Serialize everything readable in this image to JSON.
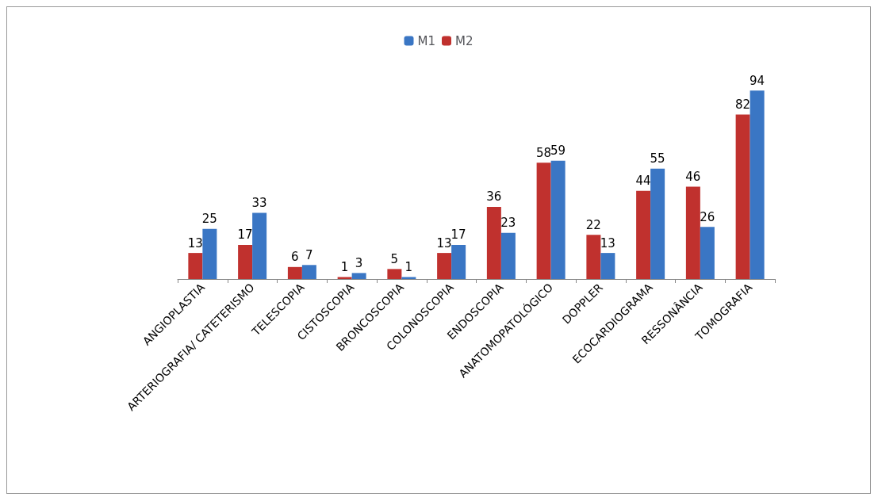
{
  "chart_data": {
    "type": "bar",
    "categories": [
      "ANGIOPLASTIA",
      "ARTERIOGRAFIA/ CATETERISMO",
      "TELESCOPIA",
      "CISTOSCOPIA",
      "BRONCOSCOPIA",
      "COLONOSCOPIA",
      "ENDOSCOPIA",
      "ANATOMOPATOLÓGICO",
      "DOPPLER",
      "ECOCARDIOGRAMA",
      "RESSONÂNCIA",
      "TOMOGRAFIA"
    ],
    "series": [
      {
        "name": "M1",
        "color": "#3a76c4",
        "values": [
          25,
          33,
          7,
          3,
          1,
          17,
          23,
          59,
          13,
          55,
          26,
          94
        ]
      },
      {
        "name": "M2",
        "color": "#c0312e",
        "values": [
          13,
          17,
          6,
          1,
          5,
          13,
          36,
          58,
          22,
          44,
          46,
          82
        ]
      }
    ],
    "data_labels": true,
    "legend": "top"
  }
}
